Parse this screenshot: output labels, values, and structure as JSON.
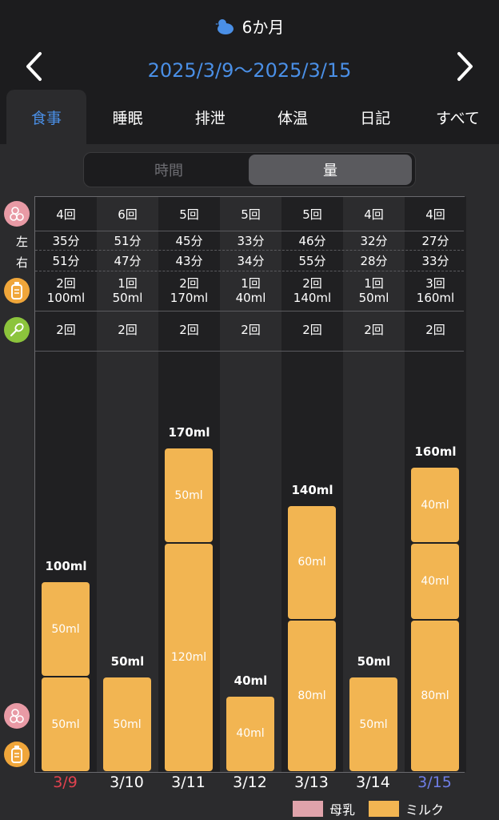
{
  "header": {
    "age": "6か月",
    "date_range": "2025/3/9〜2025/3/15",
    "prev_icon": "chevron-left-icon",
    "next_icon": "chevron-right-icon"
  },
  "tabs": [
    {
      "label": "食事",
      "active": true
    },
    {
      "label": "睡眠"
    },
    {
      "label": "排泄"
    },
    {
      "label": "体温"
    },
    {
      "label": "日記"
    },
    {
      "label": "すべて"
    }
  ],
  "segment": {
    "time_label": "時間",
    "amount_label": "量",
    "selected": "amount"
  },
  "row_labels": {
    "left": "左",
    "right": "右"
  },
  "days": [
    {
      "date": "3/9",
      "breast_count": "4回",
      "left": "35分",
      "right": "51分",
      "bottle_count": "2回",
      "bottle_ml": "100ml",
      "food": "2回",
      "total": "100ml",
      "segments": [
        {
          "value": 50,
          "label": "50ml"
        },
        {
          "value": 50,
          "label": "50ml"
        }
      ],
      "day_type": "sun"
    },
    {
      "date": "3/10",
      "breast_count": "6回",
      "left": "51分",
      "right": "47分",
      "bottle_count": "1回",
      "bottle_ml": "50ml",
      "food": "2回",
      "total": "50ml",
      "segments": [
        {
          "value": 50,
          "label": "50ml"
        }
      ],
      "day_type": "weekday"
    },
    {
      "date": "3/11",
      "breast_count": "5回",
      "left": "45分",
      "right": "43分",
      "bottle_count": "2回",
      "bottle_ml": "170ml",
      "food": "2回",
      "total": "170ml",
      "segments": [
        {
          "value": 120,
          "label": "120ml"
        },
        {
          "value": 50,
          "label": "50ml"
        }
      ],
      "day_type": "weekday"
    },
    {
      "date": "3/12",
      "breast_count": "5回",
      "left": "33分",
      "right": "34分",
      "bottle_count": "1回",
      "bottle_ml": "40ml",
      "food": "2回",
      "total": "40ml",
      "segments": [
        {
          "value": 40,
          "label": "40ml"
        }
      ],
      "day_type": "weekday"
    },
    {
      "date": "3/13",
      "breast_count": "5回",
      "left": "46分",
      "right": "55分",
      "bottle_count": "2回",
      "bottle_ml": "140ml",
      "food": "2回",
      "total": "140ml",
      "segments": [
        {
          "value": 80,
          "label": "80ml"
        },
        {
          "value": 60,
          "label": "60ml"
        }
      ],
      "day_type": "weekday"
    },
    {
      "date": "3/14",
      "breast_count": "4回",
      "left": "32分",
      "right": "28分",
      "bottle_count": "1回",
      "bottle_ml": "50ml",
      "food": "2回",
      "total": "50ml",
      "segments": [
        {
          "value": 50,
          "label": "50ml"
        }
      ],
      "day_type": "weekday"
    },
    {
      "date": "3/15",
      "breast_count": "4回",
      "left": "27分",
      "right": "33分",
      "bottle_count": "3回",
      "bottle_ml": "160ml",
      "food": "2回",
      "total": "160ml",
      "segments": [
        {
          "value": 80,
          "label": "80ml"
        },
        {
          "value": 40,
          "label": "40ml"
        },
        {
          "value": 40,
          "label": "40ml"
        }
      ],
      "day_type": "sat"
    }
  ],
  "legend": [
    {
      "label": "母乳",
      "color": "#e0a3ab"
    },
    {
      "label": "ミルク",
      "color": "#f2b552"
    }
  ],
  "colors": {
    "accent": "#4a8fe6",
    "milk": "#f2b552",
    "breast": "#e0a3ab",
    "sunday": "#e0424f",
    "saturday": "#6f7ee6"
  },
  "chart_data": {
    "type": "bar",
    "stacked": true,
    "categories": [
      "3/9",
      "3/10",
      "3/11",
      "3/12",
      "3/13",
      "3/14",
      "3/15"
    ],
    "series": [
      {
        "name": "ミルク",
        "values": [
          100,
          50,
          170,
          40,
          140,
          50,
          160
        ]
      },
      {
        "name": "母乳",
        "values": [
          0,
          0,
          0,
          0,
          0,
          0,
          0
        ]
      }
    ],
    "totals": [
      "100ml",
      "50ml",
      "170ml",
      "40ml",
      "140ml",
      "50ml",
      "160ml"
    ],
    "segment_values": [
      [
        50,
        50
      ],
      [
        50
      ],
      [
        120,
        50
      ],
      [
        40
      ],
      [
        80,
        60
      ],
      [
        50
      ],
      [
        80,
        40,
        40
      ]
    ],
    "ylim": [
      0,
      200
    ]
  }
}
